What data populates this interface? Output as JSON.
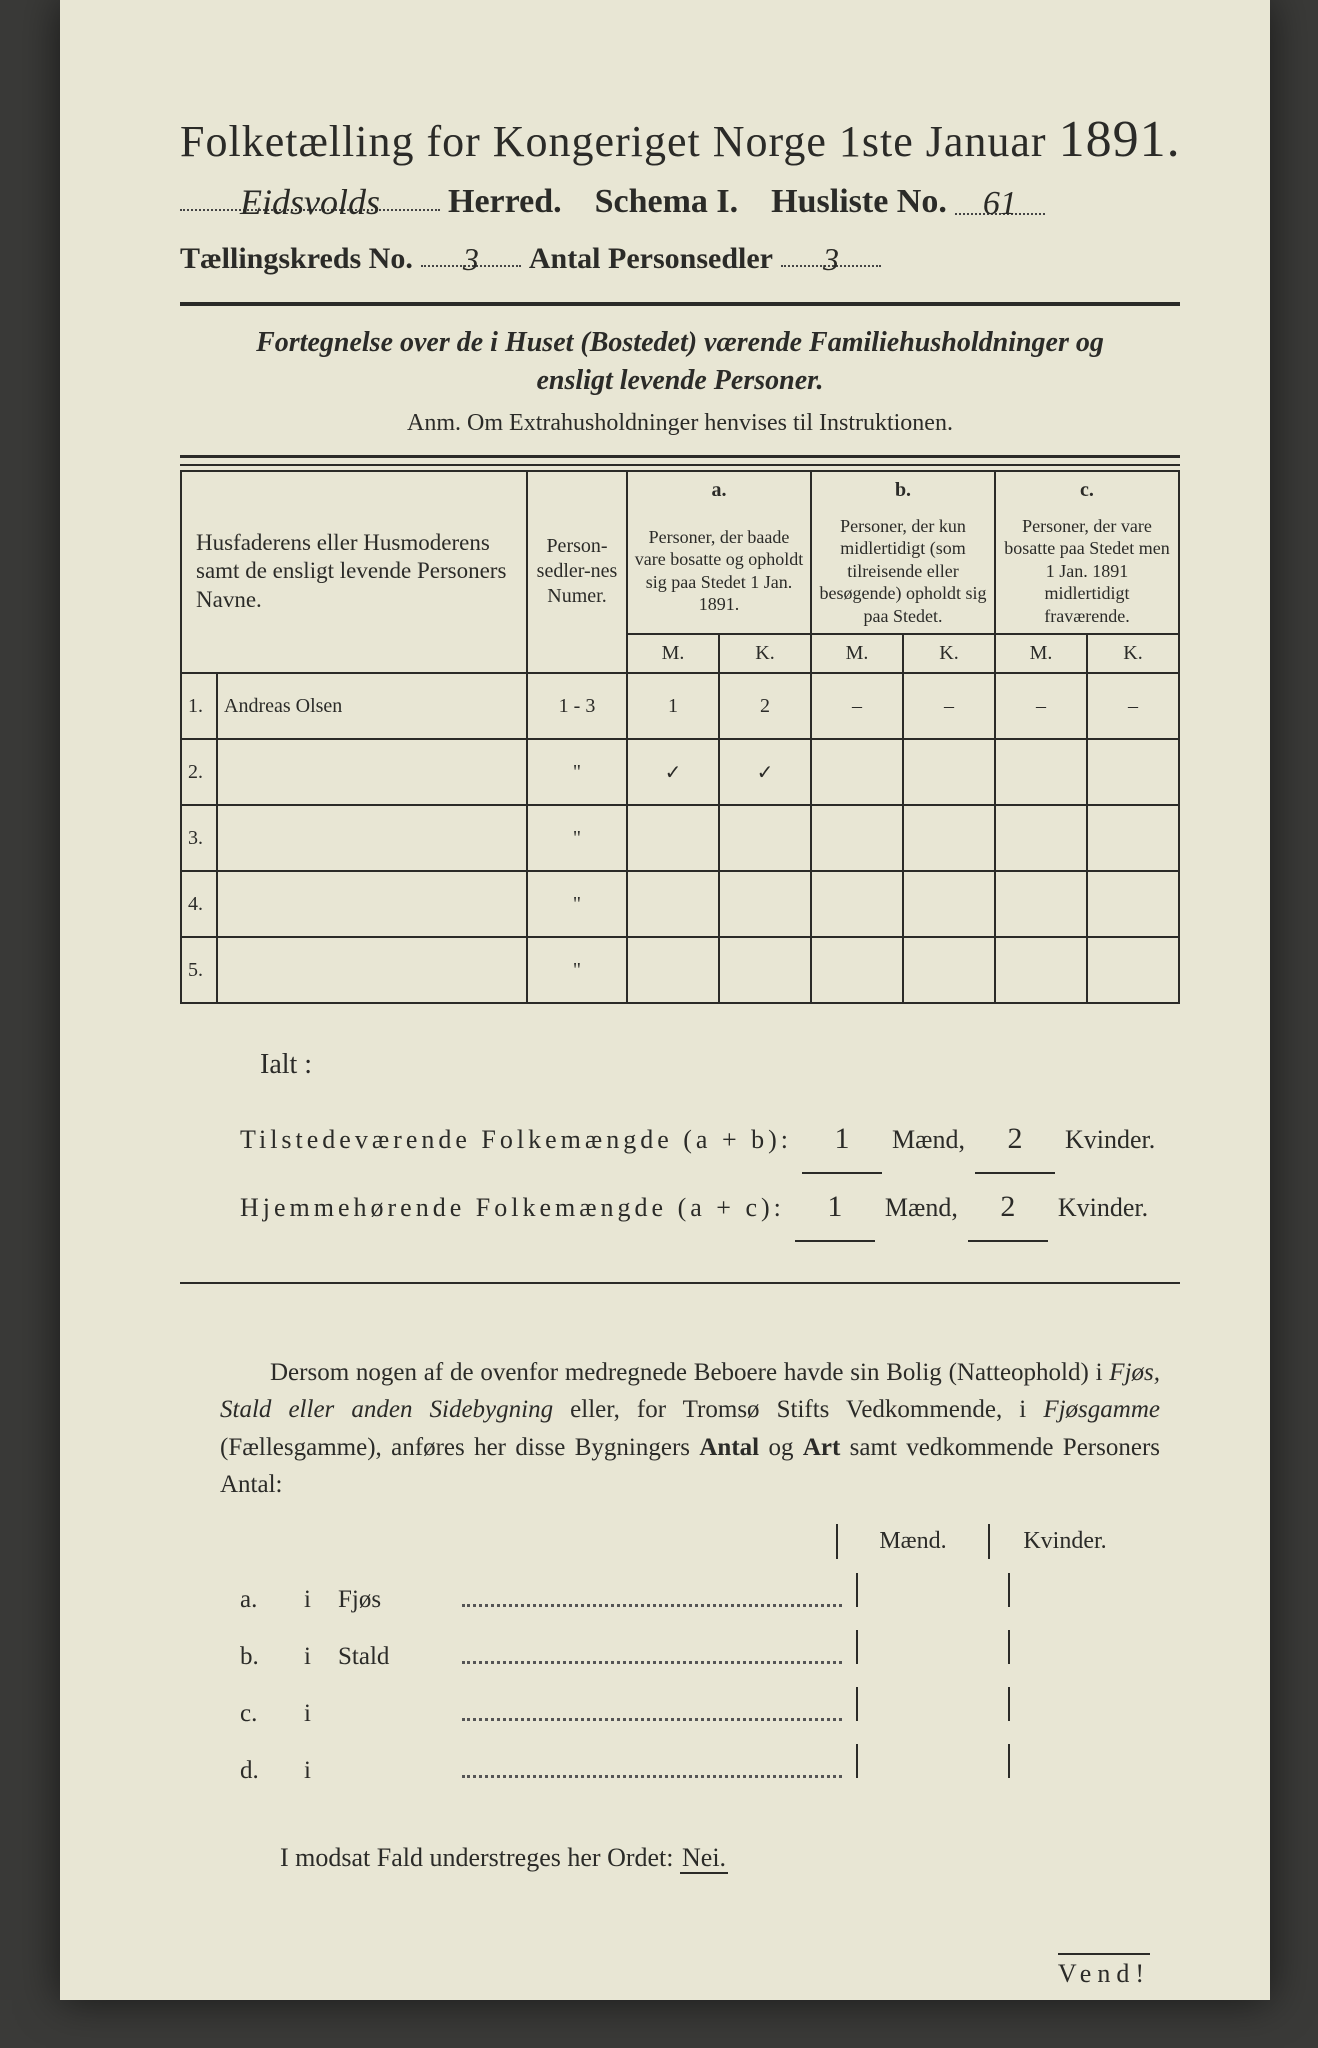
{
  "colors": {
    "paper_bg": "#e8e6d4",
    "ink": "#2b2b28",
    "page_bg": "#3a3a38"
  },
  "header": {
    "title_pre": "Folketælling for Kongeriget Norge 1ste Januar",
    "year": "1891.",
    "herred_value": "Eidsvolds",
    "herred_label": "Herred.",
    "schema_label": "Schema I.",
    "husliste_label": "Husliste No.",
    "husliste_value": "61",
    "kreds_label": "Tællingskreds No.",
    "kreds_value": "3",
    "antal_label": "Antal Personsedler",
    "antal_value": "3"
  },
  "subtitle": "Fortegnelse over de i Huset (Bostedet) værende Familiehusholdninger og ensligt levende Personer.",
  "anm": "Anm.  Om Extrahusholdninger henvises til Instruktionen.",
  "table": {
    "col_name": "Husfaderens eller Husmoderens samt de ensligt levende Personers Navne.",
    "col_numer": "Person-sedler-nes Numer.",
    "group_a_key": "a.",
    "group_a": "Personer, der baade vare bosatte og opholdt sig paa Stedet 1 Jan. 1891.",
    "group_b_key": "b.",
    "group_b": "Personer, der kun midlertidigt (som tilreisende eller besøgende) opholdt sig paa Stedet.",
    "group_c_key": "c.",
    "group_c": "Personer, der vare bosatte paa Stedet men 1 Jan. 1891 midlertidigt fraværende.",
    "m": "M.",
    "k": "K.",
    "rows": [
      {
        "idx": "1.",
        "name": "Andreas Olsen",
        "numer": "1 - 3",
        "a_m": "1",
        "a_k": "2",
        "b_m": "–",
        "b_k": "–",
        "c_m": "–",
        "c_k": "–"
      },
      {
        "idx": "2.",
        "name": "",
        "numer": "\"",
        "a_m": "✓",
        "a_k": "✓",
        "b_m": "",
        "b_k": "",
        "c_m": "",
        "c_k": ""
      },
      {
        "idx": "3.",
        "name": "",
        "numer": "\"",
        "a_m": "",
        "a_k": "",
        "b_m": "",
        "b_k": "",
        "c_m": "",
        "c_k": ""
      },
      {
        "idx": "4.",
        "name": "",
        "numer": "\"",
        "a_m": "",
        "a_k": "",
        "b_m": "",
        "b_k": "",
        "c_m": "",
        "c_k": ""
      },
      {
        "idx": "5.",
        "name": "",
        "numer": "\"",
        "a_m": "",
        "a_k": "",
        "b_m": "",
        "b_k": "",
        "c_m": "",
        "c_k": ""
      }
    ]
  },
  "ialt": {
    "heading": "Ialt :",
    "row1_label": "Tilstedeværende Folkemængde (a + b):",
    "row2_label": "Hjemmehørende Folkemængde (a + c):",
    "maend": "Mænd,",
    "kvinder": "Kvinder.",
    "row1_m": "1",
    "row1_k": "2",
    "row2_m": "1",
    "row2_k": "2"
  },
  "para": {
    "text_1": "Dersom nogen af de ovenfor medregnede Beboere havde sin Bolig (Natteophold) i ",
    "it_1": "Fjøs, Stald eller anden Sidebygning",
    "text_2": " eller, for Tromsø Stifts Vedkommende, i ",
    "it_2": "Fjøsgamme",
    "text_3": " (Fællesgamme), anføres her disse Bygningers ",
    "bold_1": "Antal",
    "text_4": " og ",
    "bold_2": "Art",
    "text_5": " samt vedkommende Personers Antal:"
  },
  "mk_head": {
    "m": "Mænd.",
    "k": "Kvinder."
  },
  "dot_list": [
    {
      "key": "a.",
      "i": "i",
      "label": "Fjøs"
    },
    {
      "key": "b.",
      "i": "i",
      "label": "Stald"
    },
    {
      "key": "c.",
      "i": "i",
      "label": ""
    },
    {
      "key": "d.",
      "i": "i",
      "label": ""
    }
  ],
  "nei_line": {
    "pre": "I modsat Fald understreges her Ordet: ",
    "nei": "Nei."
  },
  "vend": "Vend!"
}
